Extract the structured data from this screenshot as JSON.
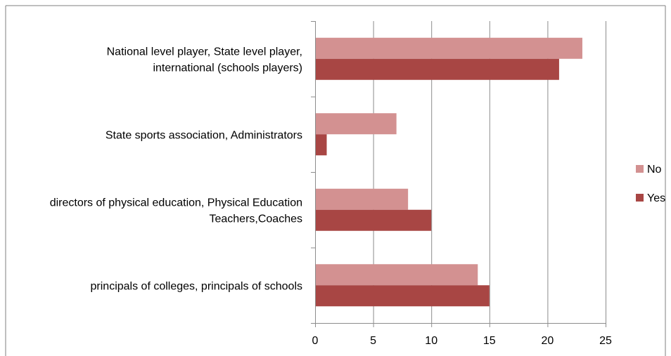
{
  "chart_data": {
    "type": "bar",
    "orientation": "horizontal",
    "categories": [
      "principals of colleges, principals of schools",
      "directors of physical education, Physical Education Teachers,Coaches",
      "State sports association, Administrators",
      "National level player, State level player, international (schools players)"
    ],
    "category_label_lines": [
      [
        "principals of colleges, principals of schools"
      ],
      [
        "directors of physical education, Physical Education",
        "Teachers,Coaches"
      ],
      [
        "State sports association, Administrators"
      ],
      [
        "National level player, State level player,",
        "international (schools players)"
      ]
    ],
    "series": [
      {
        "name": "Yes",
        "color": "#a84644",
        "values": [
          15,
          10,
          1,
          21
        ]
      },
      {
        "name": "No",
        "color": "#d39191",
        "values": [
          14,
          8,
          7,
          23
        ]
      }
    ],
    "legend_order": [
      "No",
      "Yes"
    ],
    "legend_position": "right",
    "xlim": [
      0,
      25
    ],
    "xticks": [
      "0",
      "5",
      "10",
      "15",
      "20",
      "25"
    ],
    "xtick_values": [
      0,
      5,
      10,
      15,
      20,
      25
    ],
    "grid": "vertical",
    "title": "",
    "xlabel": "",
    "ylabel": ""
  }
}
